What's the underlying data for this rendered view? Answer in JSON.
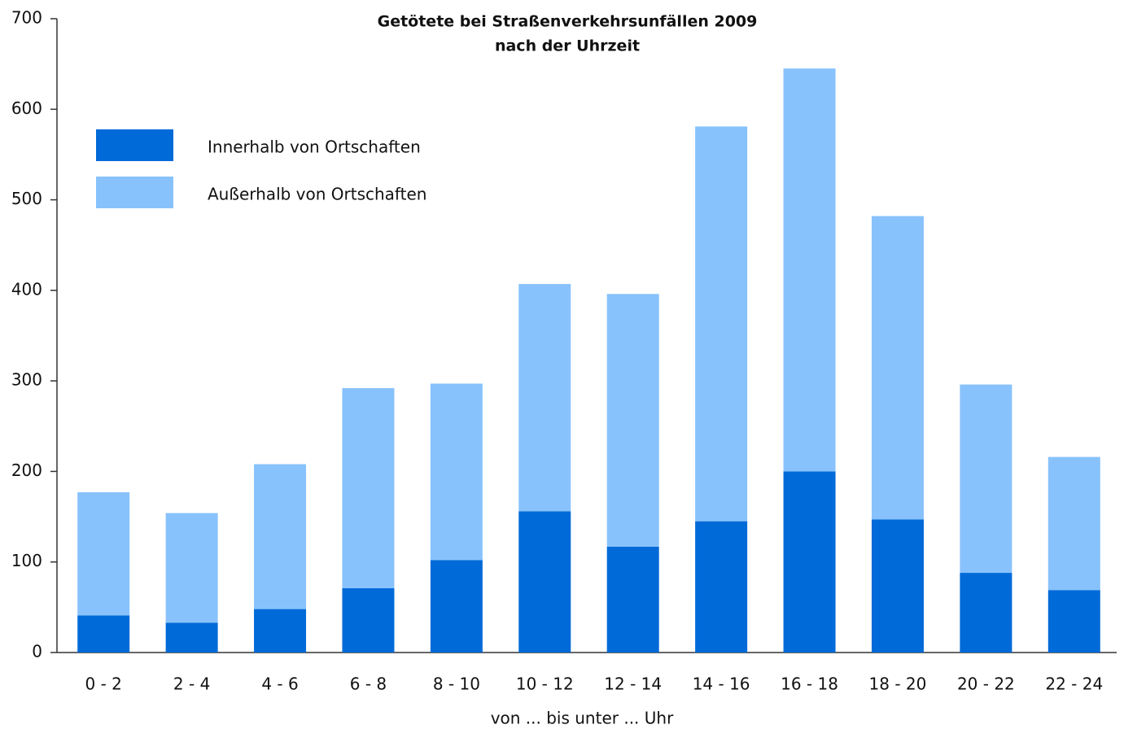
{
  "chart_data": {
    "type": "stacked_bar",
    "title": [
      "Getötete bei Straßenverkehrsunfällen 2009",
      "nach der Uhrzeit"
    ],
    "x_label": "von ... bis unter ... Uhr",
    "categories": [
      "0 - 2",
      "2 - 4",
      "4 - 6",
      "6 - 8",
      "8 - 10",
      "10 - 12",
      "12 - 14",
      "14 - 16",
      "16 - 18",
      "18 - 20",
      "20 - 22",
      "22 - 24"
    ],
    "series": [
      {
        "name": "Innerhalb von Ortschaften",
        "color": "#006ad8",
        "values": [
          41,
          33,
          48,
          71,
          102,
          156,
          117,
          145,
          200,
          147,
          88,
          69
        ]
      },
      {
        "name": "Außerhalb von Ortschaften",
        "color": "#88c2fc",
        "values": [
          136,
          121,
          160,
          221,
          195,
          251,
          279,
          436,
          445,
          335,
          208,
          147
        ]
      }
    ],
    "ylim": [
      0,
      700
    ],
    "yticks": [
      0,
      100,
      200,
      300,
      400,
      500,
      600,
      700
    ],
    "grid": false,
    "legend": "top-left"
  }
}
